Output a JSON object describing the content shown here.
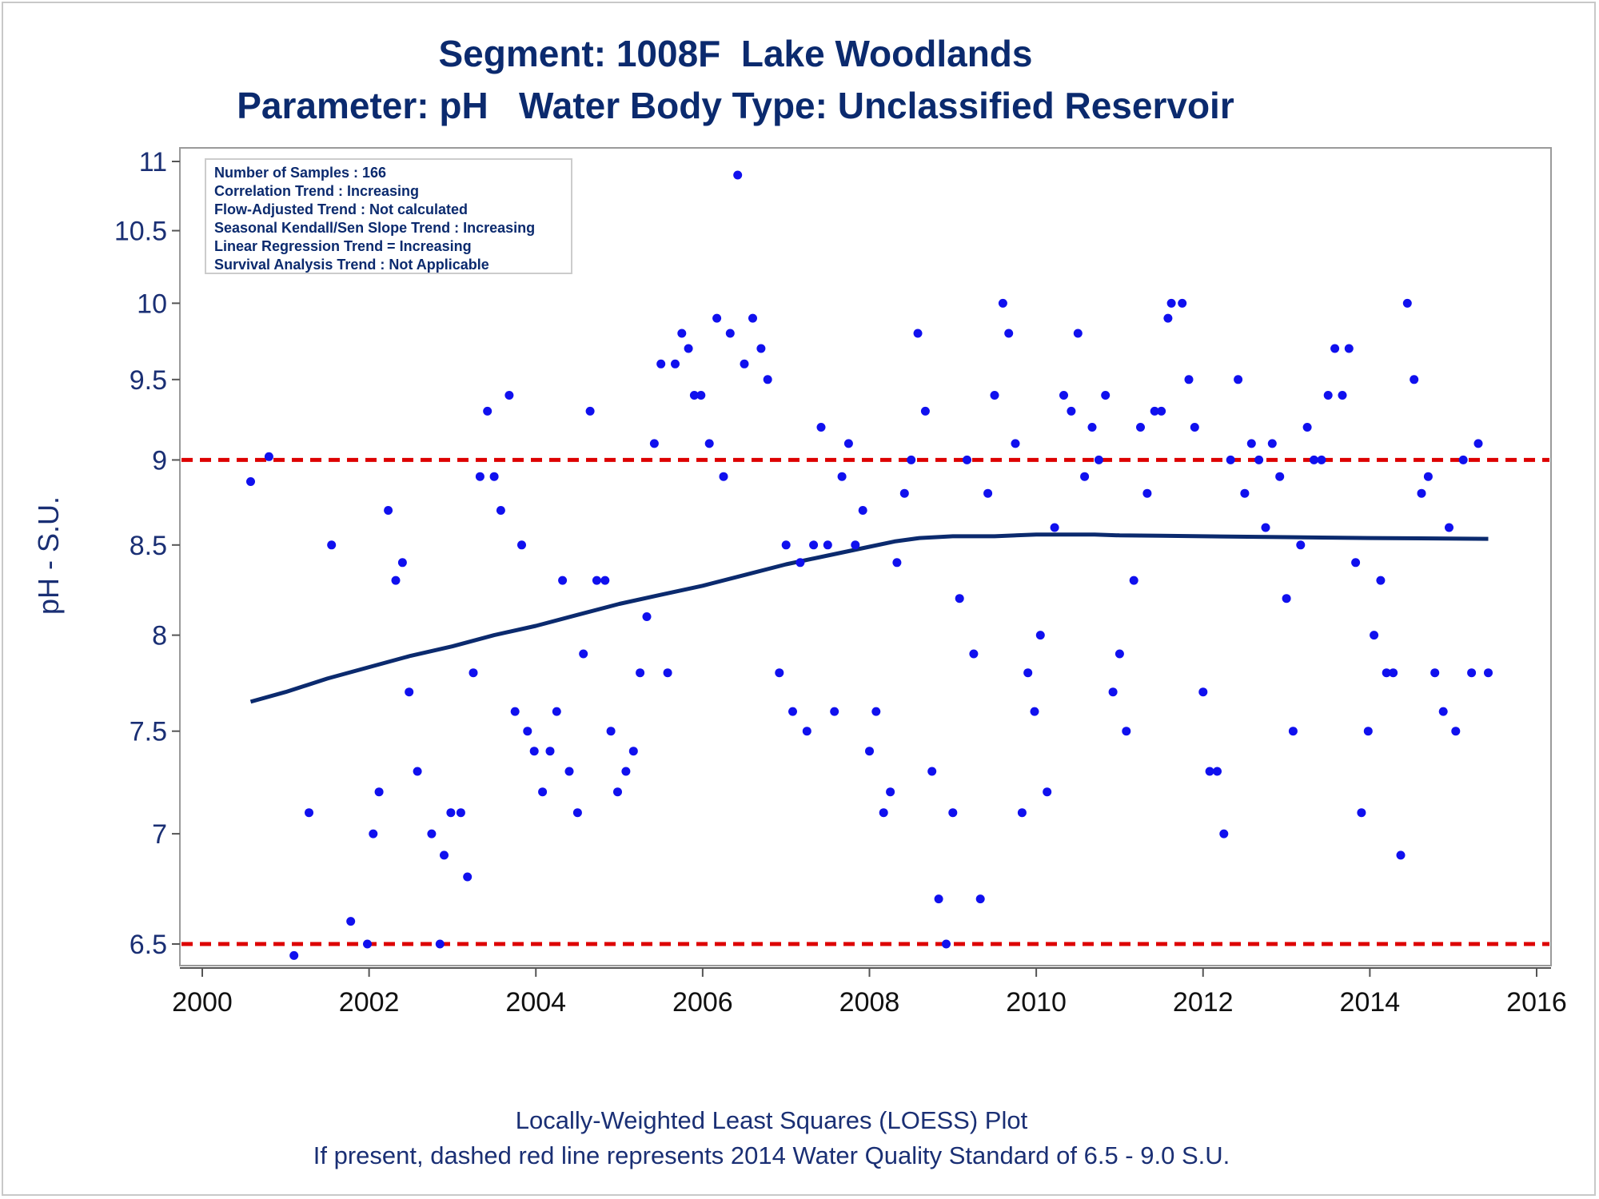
{
  "chart_data": {
    "type": "scatter",
    "title": "Segment: 1008F  Lake Woodlands",
    "subtitle": "Parameter: pH   Water Body Type: Unclassified Reservoir",
    "ylabel": "pH - S.U.",
    "xlabel": "",
    "xlim": [
      2000,
      2016
    ],
    "ylim": [
      6.44,
      11.05
    ],
    "y_scale": "log",
    "x_ticks": [
      "2000",
      "2002",
      "2004",
      "2006",
      "2008",
      "2010",
      "2012",
      "2014",
      "2016"
    ],
    "y_ticks": [
      "6.5",
      "7",
      "7.5",
      "8",
      "8.5",
      "9",
      "9.5",
      "10",
      "10.5",
      "11"
    ],
    "reference_lines": [
      6.5,
      9.0
    ],
    "info_box": [
      "Number of Samples : 166",
      "Correlation Trend : Increasing",
      "Flow-Adjusted Trend : Not calculated",
      "Seasonal Kendall/Sen Slope Trend : Increasing",
      "Linear Regression Trend = Increasing",
      "Survival Analysis Trend : Not Applicable"
    ],
    "footnote_1": "Locally-Weighted Least Squares (LOESS) Plot",
    "footnote_2": "If present, dashed red line represents 2014 Water Quality Standard of 6.5 - 9.0 S.U.",
    "colors": {
      "points": "#1010ee",
      "loess": "#0b2a6e",
      "reference": "#dd0000"
    },
    "points": [
      [
        2000.58,
        8.87
      ],
      [
        2000.8,
        9.02
      ],
      [
        2001.1,
        6.45
      ],
      [
        2001.28,
        7.1
      ],
      [
        2001.55,
        8.5
      ],
      [
        2001.78,
        6.6
      ],
      [
        2001.98,
        6.5
      ],
      [
        2002.05,
        7.0
      ],
      [
        2002.12,
        7.2
      ],
      [
        2002.23,
        8.7
      ],
      [
        2002.32,
        8.3
      ],
      [
        2002.4,
        8.4
      ],
      [
        2002.48,
        7.7
      ],
      [
        2002.58,
        7.3
      ],
      [
        2002.75,
        7.0
      ],
      [
        2002.85,
        6.5
      ],
      [
        2002.9,
        6.9
      ],
      [
        2002.98,
        7.1
      ],
      [
        2003.1,
        7.1
      ],
      [
        2003.18,
        6.8
      ],
      [
        2003.25,
        7.8
      ],
      [
        2003.33,
        8.9
      ],
      [
        2003.42,
        9.3
      ],
      [
        2003.5,
        8.9
      ],
      [
        2003.58,
        8.7
      ],
      [
        2003.68,
        9.4
      ],
      [
        2003.75,
        7.6
      ],
      [
        2003.83,
        8.5
      ],
      [
        2003.9,
        7.5
      ],
      [
        2003.98,
        7.4
      ],
      [
        2004.08,
        7.2
      ],
      [
        2004.17,
        7.4
      ],
      [
        2004.25,
        7.6
      ],
      [
        2004.32,
        8.3
      ],
      [
        2004.4,
        7.3
      ],
      [
        2004.5,
        7.1
      ],
      [
        2004.57,
        7.9
      ],
      [
        2004.65,
        9.3
      ],
      [
        2004.73,
        8.3
      ],
      [
        2004.83,
        8.3
      ],
      [
        2004.9,
        7.5
      ],
      [
        2004.98,
        7.2
      ],
      [
        2005.08,
        7.3
      ],
      [
        2005.17,
        7.4
      ],
      [
        2005.25,
        7.8
      ],
      [
        2005.33,
        8.1
      ],
      [
        2005.42,
        9.1
      ],
      [
        2005.5,
        9.6
      ],
      [
        2005.58,
        7.8
      ],
      [
        2005.67,
        9.6
      ],
      [
        2005.75,
        9.8
      ],
      [
        2005.83,
        9.7
      ],
      [
        2005.9,
        9.4
      ],
      [
        2005.98,
        9.4
      ],
      [
        2006.08,
        9.1
      ],
      [
        2006.17,
        9.9
      ],
      [
        2006.25,
        8.9
      ],
      [
        2006.33,
        9.8
      ],
      [
        2006.42,
        10.9
      ],
      [
        2006.5,
        9.6
      ],
      [
        2006.6,
        9.9
      ],
      [
        2006.7,
        9.7
      ],
      [
        2006.78,
        9.5
      ],
      [
        2006.92,
        7.8
      ],
      [
        2007.0,
        8.5
      ],
      [
        2007.08,
        7.6
      ],
      [
        2007.17,
        8.4
      ],
      [
        2007.25,
        7.5
      ],
      [
        2007.33,
        8.5
      ],
      [
        2007.42,
        9.2
      ],
      [
        2007.5,
        8.5
      ],
      [
        2007.58,
        7.6
      ],
      [
        2007.67,
        8.9
      ],
      [
        2007.75,
        9.1
      ],
      [
        2007.83,
        8.5
      ],
      [
        2007.92,
        8.7
      ],
      [
        2008.0,
        7.4
      ],
      [
        2008.08,
        7.6
      ],
      [
        2008.17,
        7.1
      ],
      [
        2008.25,
        7.2
      ],
      [
        2008.33,
        8.4
      ],
      [
        2008.42,
        8.8
      ],
      [
        2008.5,
        9.0
      ],
      [
        2008.58,
        9.8
      ],
      [
        2008.67,
        9.3
      ],
      [
        2008.75,
        7.3
      ],
      [
        2008.83,
        6.7
      ],
      [
        2008.92,
        6.5
      ],
      [
        2009.0,
        7.1
      ],
      [
        2009.08,
        8.2
      ],
      [
        2009.17,
        9.0
      ],
      [
        2009.25,
        7.9
      ],
      [
        2009.33,
        6.7
      ],
      [
        2009.42,
        8.8
      ],
      [
        2009.5,
        9.4
      ],
      [
        2009.6,
        10.0
      ],
      [
        2009.67,
        9.8
      ],
      [
        2009.75,
        9.1
      ],
      [
        2009.83,
        7.1
      ],
      [
        2009.9,
        7.8
      ],
      [
        2009.98,
        7.6
      ],
      [
        2010.05,
        8.0
      ],
      [
        2010.13,
        7.2
      ],
      [
        2010.22,
        8.6
      ],
      [
        2010.33,
        9.4
      ],
      [
        2010.42,
        9.3
      ],
      [
        2010.5,
        9.8
      ],
      [
        2010.58,
        8.9
      ],
      [
        2010.67,
        9.2
      ],
      [
        2010.75,
        9.0
      ],
      [
        2010.83,
        9.4
      ],
      [
        2010.92,
        7.7
      ],
      [
        2011.0,
        7.9
      ],
      [
        2011.08,
        7.5
      ],
      [
        2011.17,
        8.3
      ],
      [
        2011.25,
        9.2
      ],
      [
        2011.33,
        8.8
      ],
      [
        2011.42,
        9.3
      ],
      [
        2011.5,
        9.3
      ],
      [
        2011.58,
        9.9
      ],
      [
        2011.62,
        10.0
      ],
      [
        2011.75,
        10.0
      ],
      [
        2011.83,
        9.5
      ],
      [
        2011.9,
        9.2
      ],
      [
        2012.0,
        7.7
      ],
      [
        2012.08,
        7.3
      ],
      [
        2012.17,
        7.3
      ],
      [
        2012.25,
        7.0
      ],
      [
        2012.33,
        9.0
      ],
      [
        2012.42,
        9.5
      ],
      [
        2012.5,
        8.8
      ],
      [
        2012.58,
        9.1
      ],
      [
        2012.67,
        9.0
      ],
      [
        2012.75,
        8.6
      ],
      [
        2012.83,
        9.1
      ],
      [
        2012.92,
        8.9
      ],
      [
        2013.0,
        8.2
      ],
      [
        2013.08,
        7.5
      ],
      [
        2013.17,
        8.5
      ],
      [
        2013.25,
        9.2
      ],
      [
        2013.33,
        9.0
      ],
      [
        2013.42,
        9.0
      ],
      [
        2013.5,
        9.4
      ],
      [
        2013.58,
        9.7
      ],
      [
        2013.67,
        9.4
      ],
      [
        2013.75,
        9.7
      ],
      [
        2013.83,
        8.4
      ],
      [
        2013.9,
        7.1
      ],
      [
        2013.98,
        7.5
      ],
      [
        2014.05,
        8.0
      ],
      [
        2014.13,
        8.3
      ],
      [
        2014.2,
        7.8
      ],
      [
        2014.28,
        7.8
      ],
      [
        2014.37,
        6.9
      ],
      [
        2014.45,
        10.0
      ],
      [
        2014.53,
        9.5
      ],
      [
        2014.62,
        8.8
      ],
      [
        2014.7,
        8.9
      ],
      [
        2014.78,
        7.8
      ],
      [
        2014.88,
        7.6
      ],
      [
        2014.95,
        8.6
      ],
      [
        2015.03,
        7.5
      ],
      [
        2015.12,
        9.0
      ],
      [
        2015.22,
        7.8
      ],
      [
        2015.3,
        9.1
      ],
      [
        2015.42,
        7.8
      ]
    ],
    "loess": [
      [
        2000.58,
        7.65
      ],
      [
        2001.0,
        7.7
      ],
      [
        2001.5,
        7.77
      ],
      [
        2002.0,
        7.83
      ],
      [
        2002.5,
        7.89
      ],
      [
        2003.0,
        7.94
      ],
      [
        2003.5,
        8.0
      ],
      [
        2004.0,
        8.05
      ],
      [
        2004.5,
        8.11
      ],
      [
        2005.0,
        8.17
      ],
      [
        2005.5,
        8.22
      ],
      [
        2006.0,
        8.27
      ],
      [
        2006.5,
        8.33
      ],
      [
        2007.0,
        8.39
      ],
      [
        2007.5,
        8.44
      ],
      [
        2008.0,
        8.49
      ],
      [
        2008.3,
        8.52
      ],
      [
        2008.6,
        8.54
      ],
      [
        2009.0,
        8.55
      ],
      [
        2009.5,
        8.55
      ],
      [
        2010.0,
        8.56
      ],
      [
        2010.7,
        8.56
      ],
      [
        2011.0,
        8.555
      ],
      [
        2011.5,
        8.553
      ],
      [
        2012.0,
        8.55
      ],
      [
        2013.0,
        8.545
      ],
      [
        2014.0,
        8.54
      ],
      [
        2015.42,
        8.535
      ]
    ]
  }
}
